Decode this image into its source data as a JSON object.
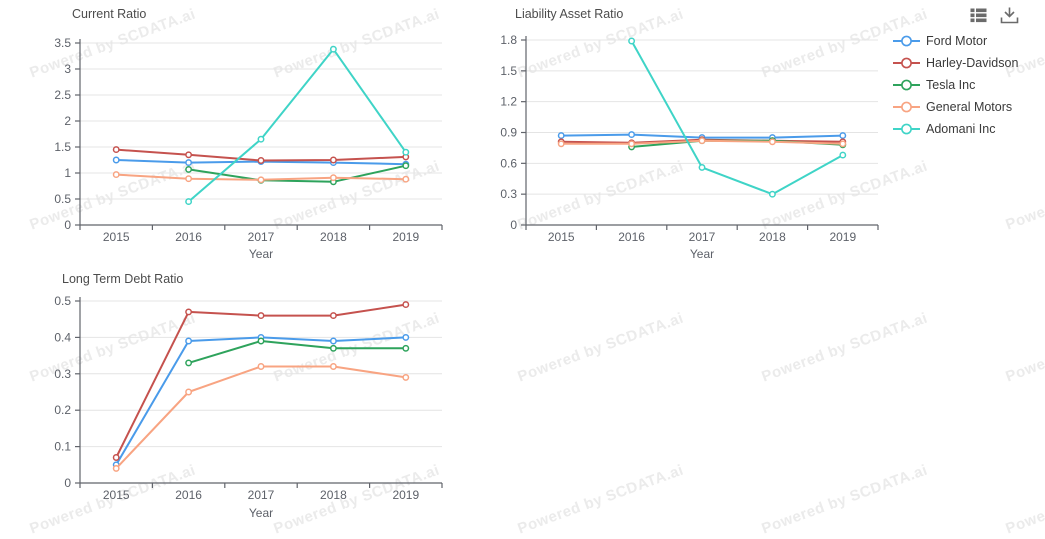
{
  "watermark": {
    "text": "Powered by SCDATA.ai",
    "color": "#ebebeb"
  },
  "toolbox": {
    "data_view_icon": "table-icon",
    "download_icon": "download-icon",
    "icon_color": "#6b6b6b"
  },
  "legend": {
    "position": "right",
    "items": [
      {
        "label": "Ford Motor",
        "color": "#4A9BEA"
      },
      {
        "label": "Harley-Davidson",
        "color": "#C5524E"
      },
      {
        "label": "Tesla Inc",
        "color": "#2EA35C"
      },
      {
        "label": "General Motors",
        "color": "#F8A482"
      },
      {
        "label": "Adomani Inc",
        "color": "#3FD4C7"
      }
    ]
  },
  "chart_data": [
    {
      "type": "line",
      "title": "Current Ratio",
      "xlabel": "Year",
      "categories": [
        "2015",
        "2016",
        "2017",
        "2018",
        "2019"
      ],
      "ylim": [
        0,
        3.5
      ],
      "yticks": [
        0,
        0.5,
        1,
        1.5,
        2,
        2.5,
        3,
        3.5
      ],
      "grid": true,
      "legend_position": "right",
      "series": [
        {
          "name": "Ford Motor",
          "values": [
            1.25,
            1.2,
            1.22,
            1.2,
            1.17
          ]
        },
        {
          "name": "Harley-Davidson",
          "values": [
            1.45,
            1.35,
            1.24,
            1.25,
            1.31
          ]
        },
        {
          "name": "Tesla Inc",
          "values": [
            null,
            1.07,
            0.86,
            0.83,
            1.14
          ]
        },
        {
          "name": "General Motors",
          "values": [
            0.97,
            0.89,
            0.87,
            0.91,
            0.88
          ]
        },
        {
          "name": "Adomani Inc",
          "values": [
            null,
            0.45,
            1.65,
            3.38,
            1.4
          ]
        }
      ]
    },
    {
      "type": "line",
      "title": "Liability Asset Ratio",
      "xlabel": "Year",
      "categories": [
        "2015",
        "2016",
        "2017",
        "2018",
        "2019"
      ],
      "ylim": [
        0,
        1.8
      ],
      "yticks": [
        0,
        0.3,
        0.6,
        0.9,
        1.2,
        1.5,
        1.8
      ],
      "grid": true,
      "legend_position": "right",
      "series": [
        {
          "name": "Ford Motor",
          "values": [
            0.87,
            0.88,
            0.85,
            0.85,
            0.87
          ]
        },
        {
          "name": "Harley-Davidson",
          "values": [
            0.81,
            0.8,
            0.83,
            0.82,
            0.81
          ]
        },
        {
          "name": "Tesla Inc",
          "values": [
            null,
            0.76,
            0.82,
            0.82,
            0.78
          ]
        },
        {
          "name": "General Motors",
          "values": [
            0.79,
            0.79,
            0.82,
            0.81,
            0.79
          ]
        },
        {
          "name": "Adomani Inc",
          "values": [
            null,
            1.79,
            0.56,
            0.3,
            0.68
          ]
        }
      ]
    },
    {
      "type": "line",
      "title": "Long Term Debt Ratio",
      "xlabel": "Year",
      "categories": [
        "2015",
        "2016",
        "2017",
        "2018",
        "2019"
      ],
      "ylim": [
        0,
        0.5
      ],
      "yticks": [
        0,
        0.1,
        0.2,
        0.3,
        0.4,
        0.5
      ],
      "grid": true,
      "legend_position": "right",
      "series": [
        {
          "name": "Ford Motor",
          "values": [
            0.05,
            0.39,
            0.4,
            0.39,
            0.4
          ]
        },
        {
          "name": "Harley-Davidson",
          "values": [
            0.07,
            0.47,
            0.46,
            0.46,
            0.49
          ]
        },
        {
          "name": "Tesla Inc",
          "values": [
            null,
            0.33,
            0.39,
            0.37,
            0.37
          ]
        },
        {
          "name": "General Motors",
          "values": [
            0.04,
            0.25,
            0.32,
            0.32,
            0.29
          ]
        },
        {
          "name": "Adomani Inc",
          "values": [
            null,
            null,
            null,
            null,
            null
          ]
        }
      ]
    }
  ]
}
